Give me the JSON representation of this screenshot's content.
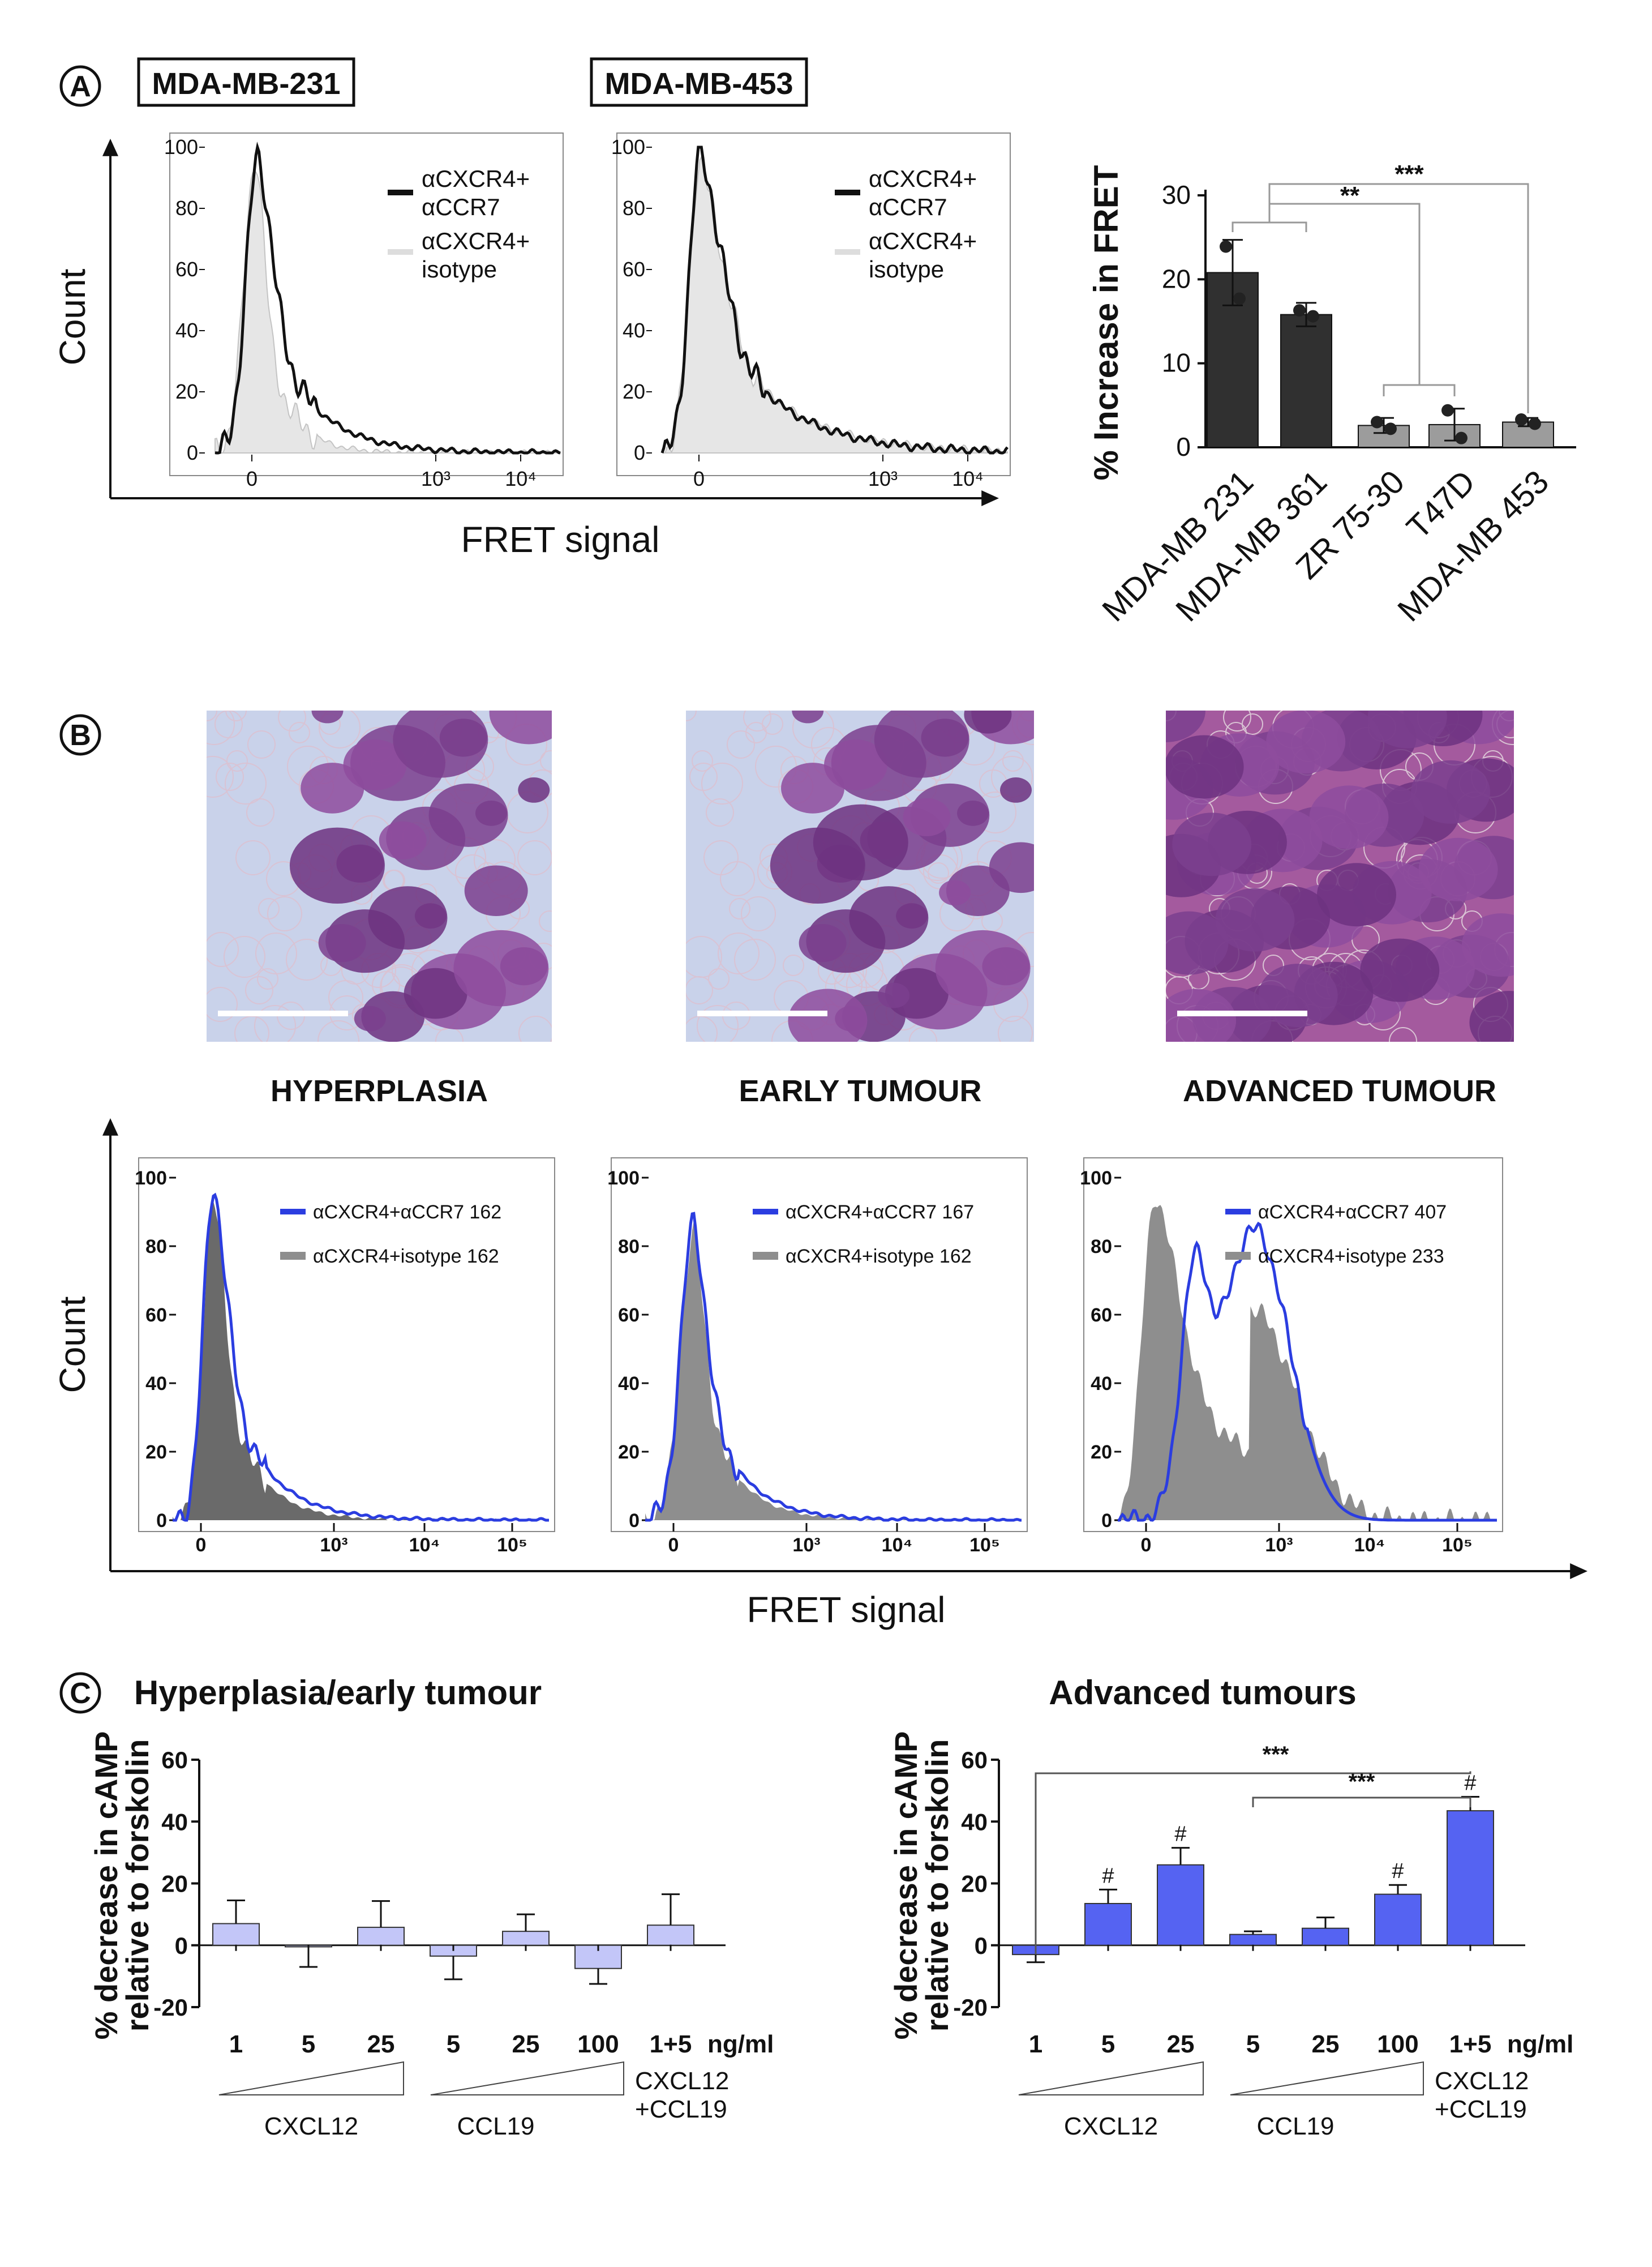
{
  "colors": {
    "ink": "#111111",
    "dark_bar": "#303030",
    "light_bar": "#9c9c9c",
    "blue": "#2b3de0",
    "blue_fill": "#5563f2",
    "pale_blue": "#c3c6f8",
    "grey_fill": "#8e8e8e",
    "light_fill": "#e6e6e6",
    "he_bg": "#c9d2ea",
    "he_tissue": "#8a4f99"
  },
  "panel_labels": [
    "A",
    "B",
    "C"
  ],
  "panel_a": {
    "hist_titles": [
      "MDA-MB-231",
      "MDA-MB-453"
    ],
    "y_label": "Count",
    "x_label": "FRET signal",
    "y_ticks": [
      "0",
      "20",
      "40",
      "60",
      "80",
      "100"
    ],
    "x_ticks": [
      "0",
      "10³",
      "10⁴"
    ],
    "legend": {
      "dark_line1": "αCXCR4+",
      "dark_line2": "αCCR7",
      "light_line1": "αCXCR4+",
      "light_line2": "isotype"
    },
    "bar_chart": {
      "type": "bar",
      "ylabel": "% Increase in FRET",
      "ylim": [
        0,
        30
      ],
      "y_ticks": [
        "0",
        "10",
        "20",
        "30"
      ],
      "categories": [
        "MDA-MB 231",
        "MDA-MB 361",
        "ZR 75-30",
        "T47D",
        "MDA-MB 453"
      ],
      "values": [
        20.8,
        15.8,
        2.6,
        2.7,
        3.0
      ],
      "errors": [
        3.9,
        1.4,
        0.9,
        1.9,
        0.5
      ],
      "points": [
        [
          23.9,
          17.7
        ],
        [
          16.3,
          15.6
        ],
        [
          3.0,
          2.2
        ],
        [
          4.4,
          1.1
        ],
        [
          3.3,
          2.8
        ]
      ],
      "groups": [
        "dark",
        "dark",
        "light",
        "light",
        "light"
      ],
      "significance": [
        "**",
        "***"
      ]
    }
  },
  "panel_b": {
    "stages": [
      "HYPERPLASIA",
      "EARLY TUMOUR",
      "ADVANCED TUMOUR"
    ],
    "y_label": "Count",
    "x_label": "FRET signal",
    "y_ticks": [
      "0",
      "20",
      "40",
      "60",
      "80",
      "100"
    ],
    "x_ticks": [
      "0",
      "10³",
      "10⁴",
      "10⁵"
    ],
    "legends": [
      {
        "blue": "αCXCR4+αCCR7 162",
        "grey": "αCXCR4+isotype 162"
      },
      {
        "blue": "αCXCR4+αCCR7 167",
        "grey": "αCXCR4+isotype 162"
      },
      {
        "blue": "αCXCR4+αCCR7 407",
        "grey": "αCXCR4+isotype 233"
      }
    ]
  },
  "panel_c": {
    "ylabel_line1": "% decrease in cAMP",
    "ylabel_line2": "relative to forskolin",
    "y_ticks": [
      "-20",
      "0",
      "20",
      "40",
      "60"
    ],
    "unit": "ng/ml",
    "conc_labels": [
      "1",
      "5",
      "25",
      "5",
      "25",
      "100",
      "1+5"
    ],
    "group_labels": {
      "cxcl12": "CXCL12",
      "ccl19": "CCL19",
      "combo_line1": "CXCL12",
      "combo_line2": "+CCL19"
    },
    "chart_data": [
      {
        "type": "bar",
        "title": "Hyperplasia/early tumour",
        "ylim": [
          -20,
          60
        ],
        "categories": [
          "1",
          "5",
          "25",
          "5",
          "25",
          "100",
          "1+5"
        ],
        "values": [
          7.0,
          -0.5,
          5.8,
          -3.5,
          4.5,
          -7.5,
          6.5
        ],
        "errors": [
          7.5,
          6.5,
          8.5,
          7.5,
          5.5,
          5.0,
          10.0
        ]
      },
      {
        "type": "bar",
        "title": "Advanced tumours",
        "ylim": [
          -20,
          60
        ],
        "categories": [
          "1",
          "5",
          "25",
          "5",
          "25",
          "100",
          "1+5"
        ],
        "values": [
          -3.0,
          13.5,
          26.0,
          3.5,
          5.5,
          16.5,
          43.5
        ],
        "errors": [
          2.5,
          4.5,
          5.5,
          1.0,
          3.5,
          3.0,
          4.5
        ],
        "hash_marks": [
          "",
          "#",
          "#",
          "",
          "",
          "#",
          "#"
        ],
        "hash_symbol": "#",
        "significance": [
          "***",
          "***"
        ]
      }
    ]
  }
}
